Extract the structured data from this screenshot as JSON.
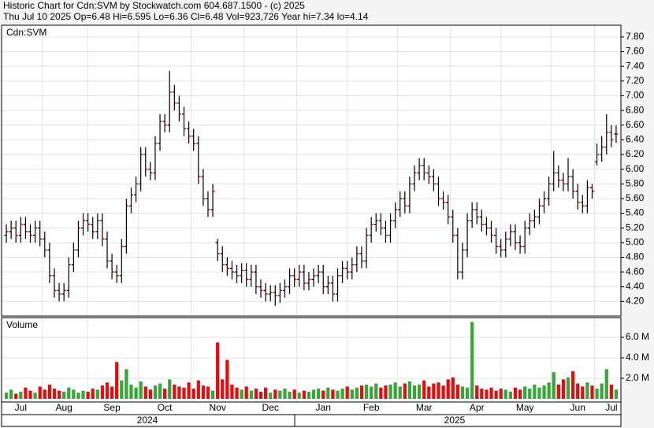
{
  "chart_data": {
    "type": "ohlc",
    "title": "Historic Chart for Cdn:SVM by Stockwatch.com 604.687.1500 - (c) 2025",
    "subtitle": "Thu Jul 10 2025  Op=6.48  Hi=6.595  Lo=6.36  Cl=6.48  Vol=923,726  Year hi=7.34  lo=4.14",
    "symbol_label": "Cdn:SVM",
    "volume_title": "Volume",
    "categories": [
      null,
      null,
      null,
      "Jul",
      null,
      null,
      null,
      null,
      null,
      null,
      null,
      null,
      "Aug",
      null,
      null,
      null,
      null,
      null,
      null,
      null,
      null,
      null,
      "Sep",
      null,
      null,
      null,
      null,
      null,
      null,
      null,
      null,
      null,
      null,
      "Oct",
      null,
      null,
      null,
      null,
      null,
      null,
      null,
      null,
      null,
      null,
      "Nov",
      null,
      null,
      null,
      null,
      null,
      null,
      null,
      null,
      null,
      null,
      "Dec",
      null,
      null,
      null,
      null,
      null,
      null,
      null,
      null,
      null,
      null,
      "Jan",
      null,
      null,
      null,
      null,
      null,
      null,
      null,
      null,
      null,
      "Feb",
      null,
      null,
      null,
      null,
      null,
      null,
      null,
      null,
      null,
      null,
      "Mar",
      null,
      null,
      null,
      null,
      null,
      null,
      null,
      null,
      null,
      null,
      "Apr",
      null,
      null,
      null,
      null,
      null,
      null,
      null,
      null,
      null,
      "May",
      null,
      null,
      null,
      null,
      null,
      null,
      null,
      null,
      null,
      null,
      "Jun",
      null,
      null,
      null,
      null,
      null,
      null,
      "Jul",
      null
    ],
    "year_labels": [
      "2024",
      "2025"
    ],
    "open": [
      5.1,
      5.15,
      5.2,
      5.1,
      5.25,
      5.15,
      5.1,
      5.2,
      5.05,
      4.9,
      4.55,
      4.35,
      4.3,
      4.35,
      4.7,
      4.9,
      5.2,
      5.3,
      5.25,
      5.15,
      5.3,
      5.05,
      4.75,
      4.6,
      4.55,
      4.95,
      5.5,
      5.65,
      5.8,
      6.2,
      6.0,
      5.95,
      6.35,
      6.65,
      6.6,
      7.05,
      6.9,
      6.75,
      6.55,
      6.45,
      6.35,
      5.9,
      5.6,
      5.45,
      5.0,
      4.85,
      4.7,
      4.65,
      4.6,
      4.55,
      4.62,
      4.5,
      4.6,
      4.4,
      4.35,
      4.3,
      4.32,
      4.28,
      4.35,
      4.4,
      4.55,
      4.5,
      4.6,
      4.45,
      4.5,
      4.55,
      4.6,
      4.4,
      4.45,
      4.3,
      4.55,
      4.65,
      4.6,
      4.7,
      4.85,
      4.75,
      5.1,
      5.25,
      5.3,
      5.2,
      5.1,
      5.3,
      5.45,
      5.6,
      5.5,
      5.8,
      5.95,
      6.05,
      5.95,
      5.9,
      5.8,
      5.6,
      5.55,
      5.35,
      5.1,
      4.6,
      4.9,
      5.3,
      5.45,
      5.35,
      5.25,
      5.2,
      5.1,
      4.95,
      4.9,
      5.05,
      5.15,
      5.0,
      4.95,
      5.2,
      5.3,
      5.35,
      5.5,
      5.6,
      5.8,
      5.95,
      5.85,
      5.8,
      5.9,
      5.7,
      5.55,
      5.5,
      5.75,
      6.1,
      6.2,
      6.3,
      6.5,
      6.48
    ],
    "high": [
      5.25,
      5.3,
      5.3,
      5.35,
      5.35,
      5.25,
      5.3,
      5.3,
      5.15,
      5.0,
      4.65,
      4.45,
      4.45,
      4.8,
      5.0,
      5.3,
      5.4,
      5.4,
      5.35,
      5.4,
      5.4,
      5.15,
      4.85,
      4.7,
      5.05,
      5.6,
      5.75,
      5.9,
      6.3,
      6.3,
      6.1,
      6.45,
      6.75,
      6.75,
      7.34,
      7.15,
      7.0,
      6.85,
      6.65,
      6.55,
      6.45,
      6.0,
      5.7,
      5.8,
      5.05,
      4.95,
      4.8,
      4.75,
      4.7,
      4.72,
      4.72,
      4.7,
      4.7,
      4.5,
      4.45,
      4.42,
      4.42,
      4.45,
      4.5,
      4.65,
      4.65,
      4.7,
      4.7,
      4.6,
      4.65,
      4.7,
      4.7,
      4.55,
      4.55,
      4.65,
      4.75,
      4.75,
      4.8,
      4.95,
      4.95,
      5.2,
      5.35,
      5.4,
      5.4,
      5.3,
      5.4,
      5.55,
      5.7,
      5.7,
      5.9,
      6.05,
      6.15,
      6.15,
      6.05,
      6.0,
      5.9,
      5.7,
      5.65,
      5.45,
      5.2,
      5.0,
      5.4,
      5.55,
      5.55,
      5.45,
      5.35,
      5.3,
      5.2,
      5.05,
      5.15,
      5.25,
      5.25,
      5.1,
      5.3,
      5.4,
      5.45,
      5.6,
      5.7,
      5.9,
      6.25,
      6.05,
      5.95,
      6.15,
      6.0,
      5.8,
      5.65,
      5.85,
      5.8,
      6.35,
      6.45,
      6.75,
      6.6,
      6.595
    ],
    "low": [
      5.0,
      5.05,
      5.0,
      5.0,
      5.05,
      5.0,
      5.0,
      4.95,
      4.8,
      4.45,
      4.25,
      4.2,
      4.2,
      4.25,
      4.6,
      4.8,
      5.1,
      5.15,
      5.05,
      5.05,
      4.95,
      4.65,
      4.5,
      4.45,
      4.45,
      4.85,
      5.4,
      5.55,
      5.7,
      5.9,
      5.85,
      5.85,
      6.25,
      6.5,
      6.5,
      6.8,
      6.65,
      6.45,
      6.35,
      6.25,
      5.8,
      5.5,
      5.35,
      5.35,
      4.75,
      4.6,
      4.55,
      4.5,
      4.45,
      4.45,
      4.4,
      4.4,
      4.3,
      4.25,
      4.2,
      4.2,
      4.14,
      4.18,
      4.25,
      4.3,
      4.4,
      4.4,
      4.35,
      4.35,
      4.4,
      4.45,
      4.3,
      4.3,
      4.2,
      4.2,
      4.45,
      4.5,
      4.5,
      4.6,
      4.65,
      4.65,
      5.0,
      5.15,
      5.1,
      5.0,
      5.0,
      5.2,
      5.35,
      5.4,
      5.4,
      5.7,
      5.85,
      5.85,
      5.8,
      5.7,
      5.5,
      5.45,
      5.25,
      5.0,
      4.5,
      4.5,
      4.8,
      5.2,
      5.25,
      5.15,
      5.1,
      5.0,
      4.85,
      4.8,
      4.8,
      4.95,
      4.9,
      4.85,
      4.85,
      5.1,
      5.2,
      5.25,
      5.4,
      5.5,
      5.7,
      5.75,
      5.7,
      5.7,
      5.6,
      5.45,
      5.4,
      5.4,
      5.6,
      6.05,
      6.1,
      6.2,
      6.3,
      6.36
    ],
    "close": [
      5.15,
      5.2,
      5.1,
      5.25,
      5.15,
      5.1,
      5.2,
      5.05,
      4.9,
      4.55,
      4.35,
      4.3,
      4.35,
      4.7,
      4.9,
      5.2,
      5.3,
      5.25,
      5.15,
      5.3,
      5.05,
      4.75,
      4.6,
      4.55,
      4.95,
      5.5,
      5.65,
      5.8,
      6.2,
      6.0,
      5.95,
      6.35,
      6.65,
      6.6,
      7.05,
      6.9,
      6.75,
      6.55,
      6.45,
      6.35,
      5.9,
      5.6,
      5.45,
      5.7,
      4.85,
      4.7,
      4.65,
      4.6,
      4.55,
      4.62,
      4.5,
      4.6,
      4.4,
      4.35,
      4.3,
      4.32,
      4.28,
      4.35,
      4.4,
      4.55,
      4.5,
      4.6,
      4.45,
      4.5,
      4.55,
      4.6,
      4.4,
      4.45,
      4.3,
      4.55,
      4.65,
      4.6,
      4.7,
      4.85,
      4.75,
      5.1,
      5.25,
      5.3,
      5.2,
      5.1,
      5.3,
      5.45,
      5.6,
      5.5,
      5.8,
      5.95,
      6.05,
      5.95,
      5.9,
      5.8,
      5.6,
      5.55,
      5.35,
      5.1,
      4.6,
      4.9,
      5.3,
      5.45,
      5.35,
      5.25,
      5.2,
      5.1,
      4.95,
      4.9,
      5.05,
      5.15,
      5.0,
      4.95,
      5.2,
      5.3,
      5.35,
      5.5,
      5.6,
      5.8,
      5.95,
      5.85,
      5.8,
      5.9,
      5.7,
      5.55,
      5.5,
      5.75,
      5.7,
      6.2,
      6.3,
      6.5,
      6.4,
      6.48
    ],
    "volume": [
      0.6,
      0.9,
      0.5,
      0.7,
      1.1,
      0.8,
      0.6,
      1.2,
      0.9,
      1.4,
      1.0,
      0.8,
      0.7,
      1.1,
      0.9,
      0.6,
      0.8,
      0.7,
      1.0,
      0.9,
      1.3,
      1.6,
      1.2,
      3.6,
      1.8,
      2.9,
      1.4,
      1.1,
      1.7,
      1.2,
      0.9,
      1.3,
      1.5,
      1.0,
      1.9,
      1.4,
      1.2,
      1.1,
      1.6,
      1.0,
      1.8,
      1.3,
      1.2,
      0.8,
      5.5,
      1.9,
      3.8,
      1.4,
      1.1,
      0.9,
      1.2,
      0.8,
      1.0,
      0.7,
      1.1,
      0.6,
      0.9,
      0.8,
      1.0,
      0.7,
      0.9,
      0.6,
      0.8,
      0.7,
      0.9,
      1.0,
      0.8,
      1.1,
      0.9,
      0.8,
      1.0,
      1.2,
      0.9,
      1.1,
      1.3,
      1.4,
      1.2,
      1.5,
      1.1,
      1.3,
      1.4,
      1.6,
      1.2,
      1.5,
      1.7,
      1.3,
      1.4,
      1.8,
      1.2,
      1.5,
      1.6,
      1.3,
      1.9,
      2.1,
      1.4,
      1.2,
      1.1,
      7.5,
      1.3,
      1.0,
      0.9,
      1.1,
      0.8,
      1.0,
      0.9,
      0.7,
      1.1,
      0.9,
      1.2,
      1.0,
      1.4,
      1.1,
      1.3,
      1.6,
      2.6,
      1.4,
      1.9,
      2.1,
      2.7,
      1.5,
      1.2,
      1.6,
      1.3,
      1.0,
      1.5,
      2.9,
      1.4,
      0.9
    ],
    "bar_color": "#000000",
    "close_color": "#d00000",
    "up_color": "#3aa53a",
    "down_color": "#e01010",
    "ylim": [
      4.0,
      7.96
    ],
    "yticks": [
      {
        "value": 4.2,
        "label": "4.20"
      },
      {
        "value": 4.4,
        "label": "4.40"
      },
      {
        "value": 4.6,
        "label": "4.60"
      },
      {
        "value": 4.8,
        "label": "4.80"
      },
      {
        "value": 5.0,
        "label": "5.00"
      },
      {
        "value": 5.2,
        "label": "5.20"
      },
      {
        "value": 5.4,
        "label": "5.40"
      },
      {
        "value": 5.6,
        "label": "5.60"
      },
      {
        "value": 5.8,
        "label": "5.80"
      },
      {
        "value": 6.0,
        "label": "6.00"
      },
      {
        "value": 6.2,
        "label": "6.20"
      },
      {
        "value": 6.4,
        "label": "6.40"
      },
      {
        "value": 6.6,
        "label": "6.60"
      },
      {
        "value": 6.8,
        "label": "6.80"
      },
      {
        "value": 7.0,
        "label": "7.00"
      },
      {
        "value": 7.2,
        "label": "7.20"
      },
      {
        "value": 7.4,
        "label": "7.40"
      },
      {
        "value": 7.6,
        "label": "7.60"
      },
      {
        "value": 7.8,
        "label": "7.80"
      }
    ],
    "y2lim": [
      0,
      7.92
    ],
    "y2ticks": [
      {
        "value": 2,
        "label": "2.0 M"
      },
      {
        "value": 4,
        "label": "4.0 M"
      },
      {
        "value": 6,
        "label": "6.0 M"
      }
    ],
    "grid": true
  }
}
